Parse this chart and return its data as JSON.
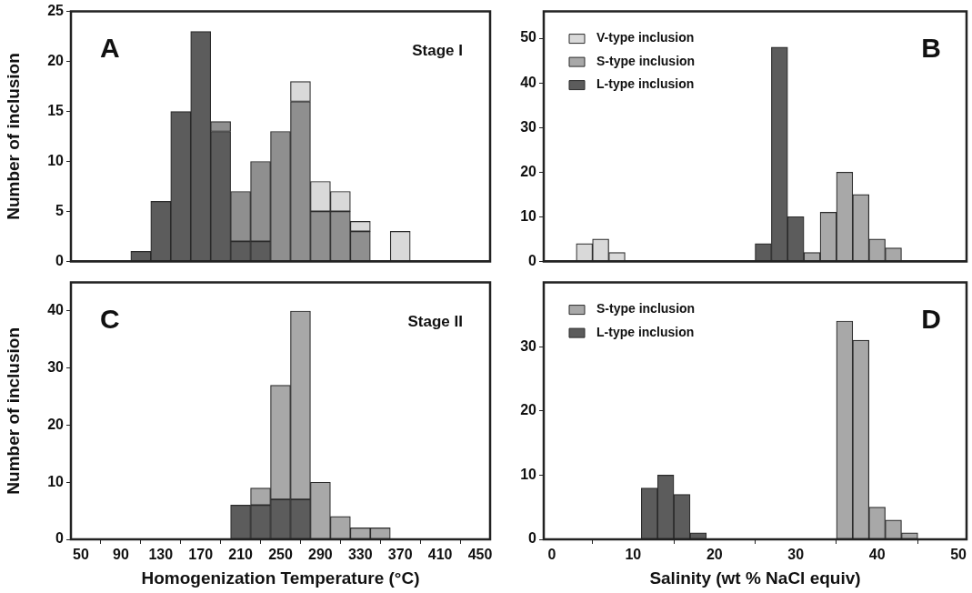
{
  "chart_data": [
    {
      "type": "bar",
      "stacked": true,
      "ylabel": "Number of inclusion",
      "annotations": [
        "A",
        "Stage I"
      ],
      "legend": false,
      "grid": false,
      "tick_labels": "y",
      "xlim": [
        40,
        460
      ],
      "xticks": [
        50,
        90,
        130,
        170,
        210,
        250,
        290,
        330,
        370,
        410,
        450
      ],
      "ylim": [
        0,
        25
      ],
      "yticks": [
        0,
        5,
        10,
        15,
        20,
        25
      ],
      "x": [
        110,
        130,
        150,
        170,
        190,
        210,
        230,
        250,
        270,
        290,
        310,
        330,
        370
      ],
      "series": [
        {
          "color": "#5c5c5c",
          "values": [
            1,
            6,
            15,
            23,
            13,
            2,
            2,
            null,
            null,
            null,
            null,
            null,
            null
          ]
        },
        {
          "color": "#8f8f8f",
          "values": [
            null,
            null,
            null,
            null,
            1,
            5,
            8,
            13,
            16,
            5,
            5,
            3,
            null
          ]
        },
        {
          "color": "#d9d9d9",
          "values": [
            null,
            null,
            null,
            null,
            null,
            null,
            null,
            null,
            2,
            3,
            2,
            1,
            3
          ]
        }
      ]
    },
    {
      "type": "bar",
      "annotations": [
        "B"
      ],
      "legend": "top left",
      "grid": false,
      "tick_labels": "y",
      "xlim": [
        -1,
        51
      ],
      "xticks": [
        0,
        10,
        20,
        30,
        40,
        50
      ],
      "ylim": [
        0,
        56
      ],
      "yticks": [
        0,
        10,
        20,
        30,
        40,
        50
      ],
      "x": [
        4,
        6,
        8,
        26,
        28,
        30,
        32,
        34,
        36,
        38,
        40,
        42
      ],
      "series": [
        {
          "name": "L-type inclusion",
          "color": "#5c5c5c",
          "values": [
            null,
            null,
            null,
            4,
            48,
            10,
            null,
            null,
            null,
            null,
            null,
            null
          ]
        },
        {
          "name": "S-type inclusion",
          "color": "#a8a8a8",
          "values": [
            null,
            null,
            null,
            null,
            null,
            null,
            2,
            11,
            20,
            15,
            5,
            3
          ]
        },
        {
          "name": "V-type inclusion",
          "color": "#d9d9d9",
          "values": [
            4,
            5,
            2,
            null,
            null,
            null,
            null,
            null,
            null,
            null,
            null,
            null
          ]
        }
      ]
    },
    {
      "type": "bar",
      "stacked": true,
      "xlabel": "Homogenization Temperature (°C)",
      "ylabel": "Number of inclusion",
      "annotations": [
        "C",
        "Stage II"
      ],
      "legend": false,
      "grid": false,
      "xlim": [
        40,
        460
      ],
      "xticks": [
        50,
        90,
        130,
        170,
        210,
        250,
        290,
        330,
        370,
        410,
        450
      ],
      "ylim": [
        0,
        45
      ],
      "yticks": [
        0,
        10,
        20,
        30,
        40
      ],
      "x": [
        210,
        230,
        250,
        270,
        290,
        310,
        330,
        350
      ],
      "series": [
        {
          "color": "#5c5c5c",
          "values": [
            6,
            6,
            7,
            7,
            null,
            null,
            null,
            null
          ]
        },
        {
          "color": "#a8a8a8",
          "values": [
            null,
            3,
            20,
            33,
            10,
            4,
            2,
            2
          ]
        }
      ]
    },
    {
      "type": "bar",
      "xlabel": "Salinity (wt % NaCl equiv)",
      "annotations": [
        "D"
      ],
      "legend": "top left",
      "grid": false,
      "xlim": [
        -1,
        51
      ],
      "xticks": [
        0,
        10,
        20,
        30,
        40,
        50
      ],
      "ylim": [
        0,
        40
      ],
      "yticks": [
        0,
        10,
        20,
        30
      ],
      "x": [
        12,
        14,
        16,
        18,
        36,
        38,
        40,
        42,
        44
      ],
      "series": [
        {
          "name": "L-type inclusion",
          "color": "#5c5c5c",
          "values": [
            8,
            10,
            7,
            1,
            null,
            null,
            null,
            null,
            null
          ]
        },
        {
          "name": "S-type inclusion",
          "color": "#a8a8a8",
          "values": [
            null,
            null,
            null,
            null,
            34,
            31,
            5,
            3,
            1
          ]
        }
      ]
    }
  ]
}
